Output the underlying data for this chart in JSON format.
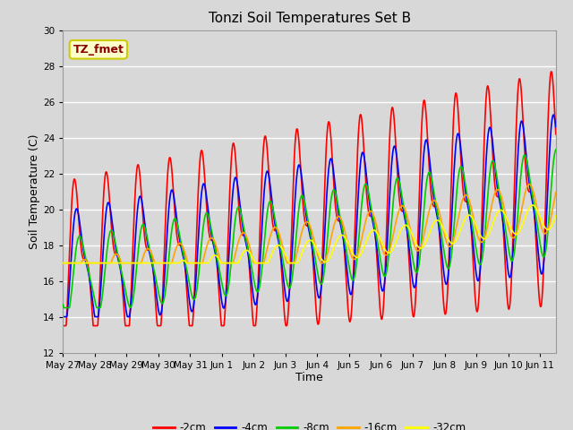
{
  "title": "Tonzi Soil Temperatures Set B",
  "xlabel": "Time",
  "ylabel": "Soil Temperature (C)",
  "ylim": [
    12,
    30
  ],
  "yticks": [
    12,
    14,
    16,
    18,
    20,
    22,
    24,
    26,
    28,
    30
  ],
  "annotation_text": "TZ_fmet",
  "annotation_color": "#8B0000",
  "annotation_bg": "#FFFFCC",
  "annotation_border": "#CCCC00",
  "bg_color": "#D8D8D8",
  "plot_bg_color": "#D8D8D8",
  "grid_color": "#FFFFFF",
  "colors": {
    "-2cm": "#FF0000",
    "-4cm": "#0000FF",
    "-8cm": "#00CC00",
    "-16cm": "#FFA500",
    "-32cm": "#FFFF00"
  },
  "line_width": 1.2,
  "x_tick_labels": [
    "May 27",
    "May 28",
    "May 29",
    "May 30",
    "May 31",
    "Jun 1",
    "Jun 2",
    "Jun 3",
    "Jun 4",
    "Jun 5",
    "Jun 6",
    "Jun 7",
    "Jun 8",
    "Jun 9",
    "Jun 10",
    "Jun 11"
  ],
  "n_days": 15.5,
  "points_per_day": 96
}
